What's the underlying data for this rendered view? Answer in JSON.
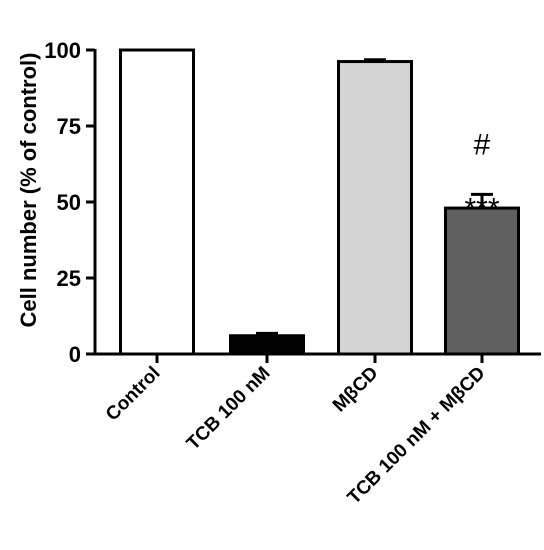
{
  "chart_data": {
    "type": "bar",
    "categories": [
      "Control",
      "TCB 100 nM",
      "MβCD",
      "TCB 100 nM + MβCD"
    ],
    "values": [
      100,
      6,
      96.2,
      48
    ],
    "error": [
      0,
      0.8,
      0.6,
      4.5
    ],
    "bar_colors": [
      "#ffffff",
      "#000000",
      "#d4d4d4",
      "#606060"
    ],
    "annotations": [
      {
        "category": "TCB 100 nM",
        "lines": [
          "***"
        ]
      },
      {
        "category": "TCB 100 nM + MβCD",
        "lines": [
          "#",
          "***"
        ]
      }
    ],
    "ylabel": "Cell number (% of control)",
    "xlabel": "",
    "title": "",
    "ylim": [
      0,
      100
    ],
    "yticks": [
      0,
      25,
      50,
      75,
      100
    ],
    "grid": false
  }
}
